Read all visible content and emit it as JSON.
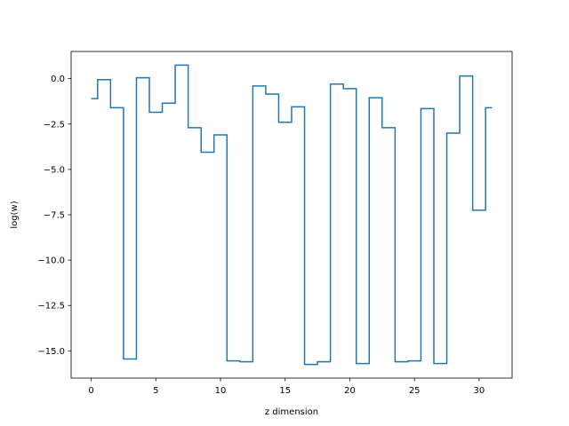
{
  "chart_data": {
    "type": "line",
    "step": "mid",
    "title": "",
    "xlabel": "z dimension",
    "ylabel": "log(w)",
    "xlim": [
      -1.55,
      32.55
    ],
    "ylim": [
      -16.5,
      1.5
    ],
    "xticks": [
      0,
      5,
      10,
      15,
      20,
      25,
      30
    ],
    "yticks": [
      0.0,
      -2.5,
      -5.0,
      -7.5,
      -10.0,
      -12.5,
      -15.0
    ],
    "xtick_labels": [
      "0",
      "5",
      "10",
      "15",
      "20",
      "25",
      "30"
    ],
    "ytick_labels": [
      "0.0",
      "−2.5",
      "−5.0",
      "−7.5",
      "−10.0",
      "−12.5",
      "−15.0"
    ],
    "grid": false,
    "series": [
      {
        "color": "#1f77b4",
        "x": [
          0,
          1,
          2,
          3,
          4,
          5,
          6,
          7,
          8,
          9,
          10,
          11,
          12,
          13,
          14,
          15,
          16,
          17,
          18,
          19,
          20,
          21,
          22,
          23,
          24,
          25,
          26,
          27,
          28,
          29,
          30,
          31
        ],
        "y": [
          -1.1,
          -0.05,
          -1.6,
          -15.45,
          0.05,
          -1.85,
          -1.35,
          0.75,
          -2.7,
          -4.05,
          -3.1,
          -15.55,
          -15.6,
          -0.4,
          -0.85,
          -2.4,
          -1.55,
          -15.75,
          -15.6,
          -0.3,
          -0.55,
          -15.7,
          -1.05,
          -2.7,
          -15.6,
          -15.55,
          -1.65,
          -15.7,
          -3.0,
          0.15,
          -7.25,
          -1.6
        ]
      }
    ]
  }
}
